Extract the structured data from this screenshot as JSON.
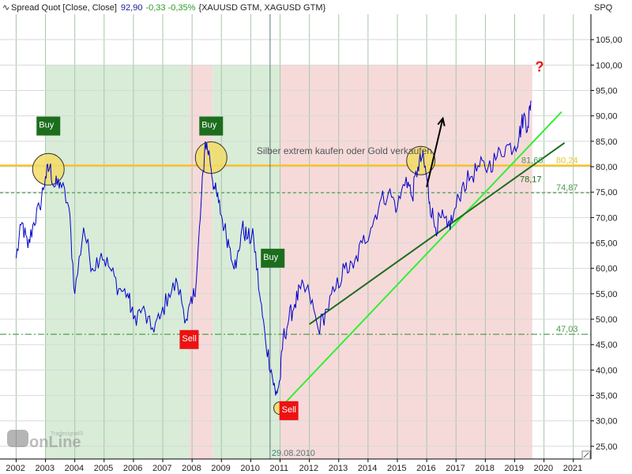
{
  "header": {
    "icon": "line-chart-icon",
    "title": "Spread Quot [Close, Close]",
    "price": "92,90",
    "change": "-0,33 -0,35%",
    "symbols": "{XAUUSD GTM, XAGUSD GTM}",
    "colors": {
      "title": "#222222",
      "price": "#1a1aa0",
      "change": "#2a9d2a",
      "symbols": "#222222"
    }
  },
  "axis_title": "SPQ",
  "watermark": {
    "brand": "onLine",
    "sub": "Tradesignal®"
  },
  "colors": {
    "series": "#0000cc",
    "grid": "#a8c6a8",
    "band_green": "#d8ecd8",
    "band_pink": "#f6dada",
    "orange_line": "#ffbb00",
    "bright_green": "#33ee33",
    "dark_green": "#1e6e1e",
    "buy_box": "#1c6e1c",
    "sell_box": "#ee1111",
    "circle_fill": "#f2dc66",
    "question": "#ee1111",
    "arrow": "#000000",
    "label_yellow": "#e5c829",
    "label_green": "#4a9a4a"
  },
  "chart_data": {
    "type": "line",
    "title": "",
    "xlabel": "",
    "ylabel": "SPQ",
    "xlim": [
      2002,
      2021.5
    ],
    "ylim": [
      22.5,
      110
    ],
    "x_ticks": [
      "2002",
      "2003",
      "2004",
      "2005",
      "2006",
      "2007",
      "2008",
      "2009",
      "2010",
      "2011",
      "2012",
      "2013",
      "2014",
      "2015",
      "2016",
      "2017",
      "2018",
      "2019",
      "2020",
      "2021"
    ],
    "y_ticks": [
      "25,00",
      "30,00",
      "35,00",
      "40,00",
      "45,00",
      "50,00",
      "55,00",
      "60,00",
      "65,00",
      "70,00",
      "75,00",
      "80,00",
      "85,00",
      "90,00",
      "95,00",
      "100,00",
      "105,00"
    ],
    "grid": true,
    "series": [
      {
        "name": "",
        "x": [
          2002.0,
          2002.2,
          2002.4,
          2002.6,
          2002.8,
          2003.0,
          2003.15,
          2003.3,
          2003.5,
          2003.8,
          2004.0,
          2004.3,
          2004.6,
          2004.9,
          2005.2,
          2005.5,
          2005.8,
          2006.0,
          2006.3,
          2006.6,
          2006.9,
          2007.2,
          2007.5,
          2007.8,
          2008.0,
          2008.15,
          2008.3,
          2008.45,
          2008.6,
          2008.75,
          2008.9,
          2009.1,
          2009.3,
          2009.5,
          2009.7,
          2009.9,
          2010.1,
          2010.3,
          2010.5,
          2010.7,
          2010.85,
          2011.0,
          2011.1,
          2011.3,
          2011.5,
          2011.7,
          2012.0,
          2012.3,
          2012.6,
          2012.9,
          2013.2,
          2013.5,
          2013.8,
          2014.1,
          2014.4,
          2014.7,
          2015.0,
          2015.3,
          2015.5,
          2015.7,
          2015.85,
          2016.0,
          2016.1,
          2016.3,
          2016.5,
          2016.7,
          2016.9,
          2017.2,
          2017.5,
          2017.8,
          2018.1,
          2018.4,
          2018.7,
          2019.0,
          2019.15,
          2019.3,
          2019.45,
          2019.55
        ],
        "y": [
          62,
          69,
          64,
          69,
          72,
          78,
          80,
          76,
          77,
          72,
          55,
          68,
          60,
          63,
          60,
          56,
          55,
          50,
          52,
          48,
          50,
          55,
          57,
          50,
          53,
          58,
          72,
          85,
          82,
          76,
          73,
          68,
          64,
          60,
          68,
          66,
          66,
          55,
          46,
          40,
          35,
          38,
          46,
          50,
          53,
          56,
          55,
          48,
          52,
          56,
          60,
          60,
          65,
          68,
          73,
          75,
          72,
          78,
          74,
          80,
          82,
          78,
          73,
          68,
          70,
          68,
          70,
          76,
          78,
          80,
          80,
          82,
          84,
          84,
          86,
          90,
          88,
          93
        ]
      }
    ],
    "horizontal_lines": [
      {
        "y": 80.24,
        "label": "80,24"
      },
      {
        "y": 74.87,
        "label": "74,87"
      },
      {
        "y": 47.03,
        "label": "47,03"
      }
    ],
    "trendline_labels": [
      "81,66",
      "78,17"
    ],
    "vertical_marker": {
      "x": 2010.66,
      "label": "29.08.2010"
    },
    "bands": [
      {
        "from": 2003.0,
        "to": 2007.9,
        "kind": "green"
      },
      {
        "from": 2007.9,
        "to": 2008.7,
        "kind": "pink"
      },
      {
        "from": 2008.7,
        "to": 2011.0,
        "kind": "green"
      },
      {
        "from": 2011.0,
        "to": 2019.6,
        "kind": "pink"
      }
    ],
    "signals": [
      {
        "label": "Buy",
        "kind": "buy",
        "x": 2003.1,
        "y": 88
      },
      {
        "label": "Buy",
        "kind": "buy",
        "x": 2008.65,
        "y": 88
      },
      {
        "label": "Buy",
        "kind": "buy",
        "x": 2010.75,
        "y": 62
      },
      {
        "label": "Sell",
        "kind": "sell",
        "x": 2007.9,
        "y": 46
      },
      {
        "label": "Sell",
        "kind": "sell",
        "x": 2011.3,
        "y": 32
      }
    ],
    "circles": [
      {
        "x": 2003.1,
        "y": 79.5
      },
      {
        "x": 2008.65,
        "y": 81.8
      },
      {
        "x": 2015.8,
        "y": 81.2
      },
      {
        "x": 2011.0,
        "y": 32.5
      }
    ],
    "trendlines": [
      {
        "kind": "bright",
        "x1": 2011.0,
        "y1": 32.5,
        "x2": 2020.6,
        "y2": 90.8
      },
      {
        "kind": "dark",
        "x1": 2012.0,
        "y1": 49,
        "x2": 2020.7,
        "y2": 84.7
      }
    ],
    "arrow": {
      "x1": 2016.0,
      "y1": 76,
      "x2": 2016.55,
      "y2": 89.5
    },
    "annotations": [
      {
        "text": "Silber extrem kaufen oder Gold verkaufen",
        "x": 2010.2,
        "y": 82.5
      },
      {
        "text": "?",
        "x": 2019.7,
        "y": 100
      }
    ]
  }
}
